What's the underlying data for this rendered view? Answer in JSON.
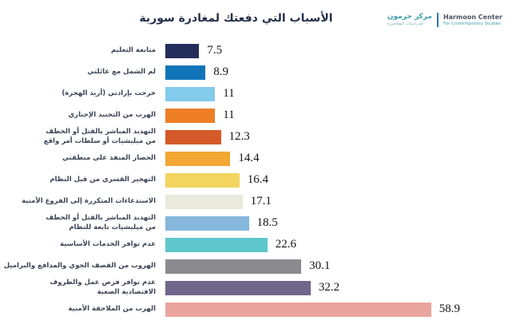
{
  "title": "الأسباب التي دفعتك لمغادرة سورية",
  "logo": {
    "arabic_name": "مركز حرمون",
    "arabic_subtitle": "للدراسات المعاصرة",
    "english_name": "Harmoon Center",
    "english_subtitle": "For Contemporary Studies",
    "teal": "#3f9fae",
    "dark": "#4a5560",
    "separator_color": "#2e75b5"
  },
  "chart_data": {
    "type": "bar",
    "orientation": "horizontal",
    "title": "الأسباب التي دفعتك لمغادرة سورية",
    "xlabel": "",
    "ylabel": "",
    "value_range": [
      0,
      60
    ],
    "grid": false,
    "legend": false,
    "value_label_position": "right-of-bar",
    "categories": [
      "متابعة التعليم",
      "لم الشمل مع عائلتي",
      "خرجت بإرادتي (أريد الهجرة)",
      "الهرب من التجنيد الإجباري",
      "التهديد المباشر بالقتل أو الخطف\nمن ميليشيات أو سلطات أمر واقع",
      "الحصار المنفذ على منطقتي",
      "التهجير القسري من قبل النظام",
      "الاستدعاءات المتكررة إلى الفروع الأمنية",
      "التهديد المباشر بالقتل أو الخطف\nمن ميليشيات تابعة للنظام",
      "عدم توافر الخدمات الأساسية",
      "الهروب من القصف الجوي والمدافع والبراميل",
      "عدم توافر فرص عمل والظروف\nالاقتصادية الصعبة",
      "الهرب من الملاحقة الأمنية"
    ],
    "values": [
      7.5,
      8.9,
      11,
      11,
      12.3,
      14.4,
      16.4,
      17.1,
      18.5,
      22.6,
      30.1,
      32.2,
      58.9
    ],
    "bar_colors": [
      "#232d5c",
      "#1274b8",
      "#82cbec",
      "#ee7e26",
      "#d45a2a",
      "#f2a832",
      "#f3d45f",
      "#e9eadb",
      "#85b7dc",
      "#5ec7cb",
      "#8b8b8f",
      "#70658a",
      "#eaa49e"
    ]
  }
}
